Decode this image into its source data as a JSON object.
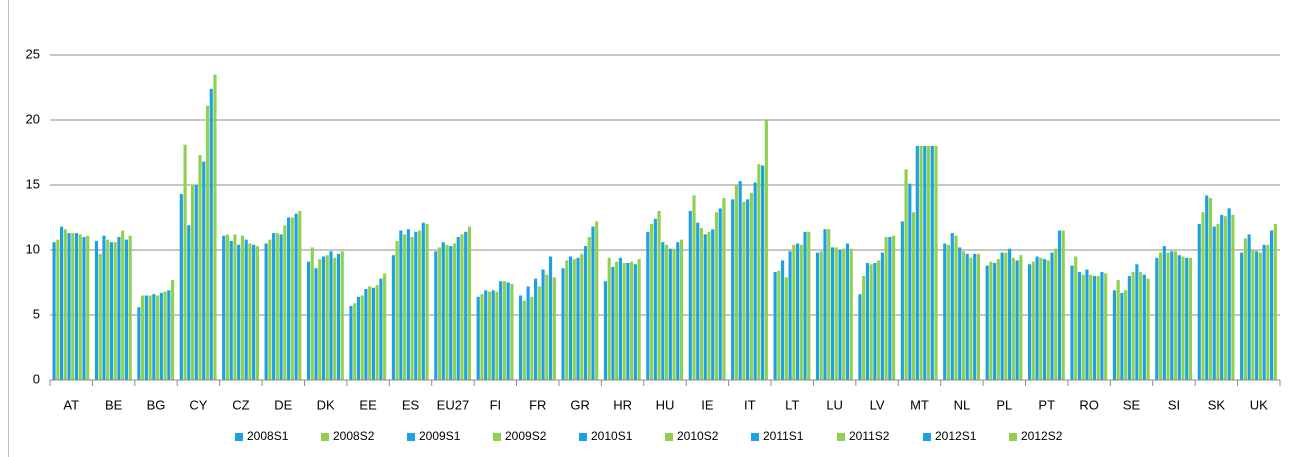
{
  "chart_data": {
    "type": "bar",
    "categories": [
      "AT",
      "BE",
      "BG",
      "CY",
      "CZ",
      "DE",
      "DK",
      "EE",
      "ES",
      "EU27",
      "FI",
      "FR",
      "GR",
      "HR",
      "HU",
      "IE",
      "IT",
      "LT",
      "LU",
      "LV",
      "MT",
      "NL",
      "PL",
      "PT",
      "RO",
      "SE",
      "SI",
      "SK",
      "UK"
    ],
    "series": [
      {
        "name": "2008S1",
        "color": "#1ba1e2",
        "values": [
          10.6,
          10.7,
          5.6,
          14.3,
          11.1,
          10.5,
          9.1,
          5.7,
          9.6,
          9.9,
          6.4,
          6.5,
          8.6,
          7.6,
          11.4,
          13.0,
          13.9,
          8.3,
          9.8,
          6.6,
          12.2,
          10.5,
          8.8,
          8.9,
          8.8,
          6.9,
          9.4,
          12.0,
          9.8
        ]
      },
      {
        "name": "2008S2",
        "color": "#8fd14f",
        "values": [
          10.8,
          9.7,
          6.5,
          18.1,
          11.2,
          10.8,
          10.2,
          5.9,
          10.7,
          10.2,
          6.6,
          6.1,
          9.2,
          9.4,
          12.0,
          14.2,
          15.0,
          8.4,
          9.9,
          8.0,
          16.2,
          10.4,
          9.1,
          9.1,
          9.5,
          7.7,
          9.8,
          12.9,
          10.9
        ]
      },
      {
        "name": "2009S1",
        "color": "#1ba1e2",
        "values": [
          11.8,
          11.1,
          6.5,
          11.9,
          10.7,
          11.3,
          8.6,
          6.4,
          11.5,
          10.6,
          6.9,
          7.2,
          9.5,
          8.7,
          12.4,
          12.1,
          15.3,
          9.2,
          11.6,
          9.0,
          15.1,
          11.3,
          9.0,
          9.5,
          8.3,
          6.7,
          10.3,
          14.2,
          11.2
        ]
      },
      {
        "name": "2009S2",
        "color": "#8fd14f",
        "values": [
          11.6,
          10.8,
          6.5,
          15.0,
          11.2,
          11.3,
          9.3,
          6.5,
          11.2,
          10.4,
          6.8,
          6.4,
          9.3,
          9.1,
          13.0,
          11.7,
          13.7,
          7.9,
          11.6,
          8.9,
          12.9,
          11.1,
          9.3,
          9.4,
          8.1,
          6.9,
          9.8,
          14.0,
          10.0
        ]
      },
      {
        "name": "2010S1",
        "color": "#1ba1e2",
        "values": [
          11.3,
          10.6,
          6.6,
          15.0,
          10.4,
          11.2,
          9.5,
          7.0,
          11.6,
          10.3,
          6.9,
          7.8,
          9.4,
          9.4,
          10.6,
          11.2,
          13.9,
          9.9,
          10.2,
          9.0,
          18.0,
          10.2,
          9.8,
          9.3,
          8.5,
          8.0,
          9.9,
          11.8,
          9.9
        ]
      },
      {
        "name": "2010S2",
        "color": "#8fd14f",
        "values": [
          11.3,
          10.6,
          6.5,
          17.3,
          11.1,
          11.9,
          9.6,
          7.2,
          11.0,
          10.5,
          6.8,
          7.2,
          9.7,
          9.0,
          10.4,
          11.4,
          14.4,
          10.4,
          10.2,
          9.2,
          18.0,
          9.9,
          9.8,
          9.2,
          8.1,
          8.3,
          9.9,
          12.0,
          9.8
        ]
      },
      {
        "name": "2011S1",
        "color": "#1ba1e2",
        "values": [
          11.3,
          11.0,
          6.7,
          16.8,
          10.8,
          12.5,
          9.9,
          7.1,
          11.4,
          11.0,
          7.6,
          8.5,
          10.3,
          9.0,
          10.1,
          11.6,
          15.2,
          10.5,
          10.0,
          9.8,
          18.0,
          9.7,
          10.1,
          9.8,
          8.0,
          8.9,
          9.6,
          12.7,
          10.4
        ]
      },
      {
        "name": "2011S2",
        "color": "#8fd14f",
        "values": [
          11.2,
          11.5,
          6.8,
          21.1,
          10.5,
          12.5,
          9.4,
          7.3,
          11.5,
          11.2,
          7.6,
          8.1,
          11.0,
          9.1,
          10.1,
          12.9,
          16.6,
          10.4,
          10.1,
          11.0,
          18.0,
          9.4,
          9.4,
          10.1,
          8.0,
          8.3,
          9.5,
          12.6,
          10.4
        ]
      },
      {
        "name": "2012S1",
        "color": "#1ba1e2",
        "values": [
          11.0,
          10.8,
          6.9,
          22.4,
          10.4,
          12.8,
          9.7,
          7.8,
          12.1,
          11.4,
          7.5,
          9.5,
          11.8,
          8.9,
          10.6,
          13.2,
          16.5,
          11.4,
          10.5,
          11.0,
          18.0,
          9.7,
          9.2,
          11.5,
          8.3,
          8.1,
          9.4,
          13.2,
          11.5
        ]
      },
      {
        "name": "2012S2",
        "color": "#8fd14f",
        "values": [
          11.1,
          11.1,
          7.7,
          23.5,
          10.3,
          13.0,
          9.9,
          8.2,
          12.0,
          11.8,
          7.4,
          7.9,
          12.2,
          9.3,
          10.8,
          14.0,
          20.0,
          11.4,
          10.1,
          11.1,
          18.0,
          9.7,
          9.6,
          11.5,
          8.2,
          7.8,
          9.4,
          12.7,
          12.0
        ]
      }
    ],
    "ylim": [
      0,
      25
    ],
    "yticks": [
      0,
      5,
      10,
      15,
      20,
      25
    ],
    "grid": true,
    "legend": "bottom"
  }
}
